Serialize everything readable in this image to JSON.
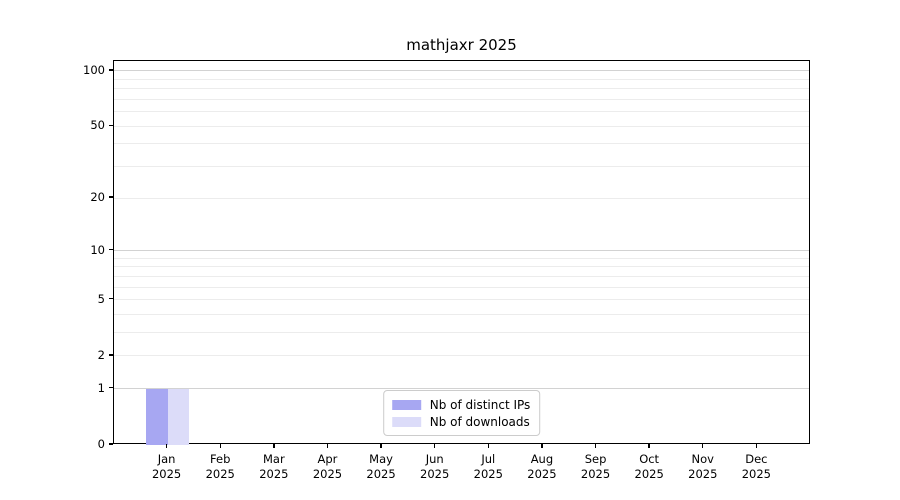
{
  "chart_data": {
    "type": "bar",
    "title": "mathjaxr 2025",
    "xlabel": "",
    "ylabel": "",
    "year": "2025",
    "categories": [
      "Jan",
      "Feb",
      "Mar",
      "Apr",
      "May",
      "Jun",
      "Jul",
      "Aug",
      "Sep",
      "Oct",
      "Nov",
      "Dec"
    ],
    "series": [
      {
        "name": "Nb of distinct IPs",
        "color": "#a7a7f2",
        "values": [
          1,
          0,
          0,
          0,
          0,
          0,
          0,
          0,
          0,
          0,
          0,
          0
        ]
      },
      {
        "name": "Nb of downloads",
        "color": "#dcdcf9",
        "values": [
          1,
          0,
          0,
          0,
          0,
          0,
          0,
          0,
          0,
          0,
          0,
          0
        ]
      }
    ],
    "y_scale": "log10(1+x)",
    "ylim": [
      0,
      113
    ],
    "y_tick_labels": [
      0,
      1,
      2,
      5,
      10,
      20,
      50,
      100
    ],
    "y_major_gridlines": [
      1,
      10,
      100
    ],
    "y_minor_gridlines": [
      2,
      3,
      4,
      5,
      6,
      7,
      8,
      9,
      20,
      30,
      40,
      50,
      60,
      70,
      80,
      90
    ],
    "grid": "horizontal",
    "legend_position": "lower center",
    "colors": {
      "major_grid": "#d2d2d2",
      "minor_grid": "#ececec",
      "spine": "#000000",
      "background": "#ffffff",
      "text": "#000000"
    }
  }
}
